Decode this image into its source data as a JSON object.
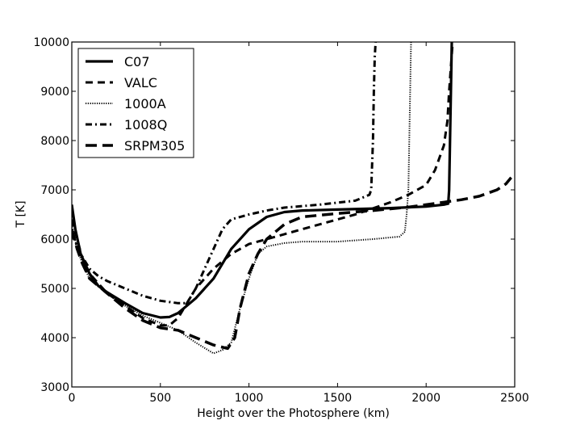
{
  "chart_data": {
    "type": "line",
    "title": "",
    "xlabel": "Height over the Photosphere (km)",
    "ylabel": "T [K]",
    "xlim": [
      0,
      2500
    ],
    "ylim": [
      3000,
      10000
    ],
    "xticks": [
      0,
      500,
      1000,
      1500,
      2000,
      2500
    ],
    "yticks": [
      3000,
      4000,
      5000,
      6000,
      7000,
      8000,
      9000,
      10000
    ],
    "legend_position": "top-left",
    "series": [
      {
        "name": "C07",
        "style": "solid",
        "points": [
          [
            0,
            6700
          ],
          [
            20,
            6200
          ],
          [
            50,
            5700
          ],
          [
            100,
            5300
          ],
          [
            150,
            5050
          ],
          [
            200,
            4920
          ],
          [
            300,
            4700
          ],
          [
            400,
            4500
          ],
          [
            500,
            4410
          ],
          [
            550,
            4420
          ],
          [
            600,
            4500
          ],
          [
            700,
            4800
          ],
          [
            800,
            5200
          ],
          [
            900,
            5800
          ],
          [
            1000,
            6200
          ],
          [
            1100,
            6450
          ],
          [
            1200,
            6550
          ],
          [
            1300,
            6580
          ],
          [
            1500,
            6600
          ],
          [
            1800,
            6630
          ],
          [
            2000,
            6660
          ],
          [
            2100,
            6700
          ],
          [
            2125,
            6720
          ],
          [
            2130,
            7000
          ],
          [
            2135,
            8000
          ],
          [
            2140,
            9000
          ],
          [
            2145,
            10000
          ]
        ]
      },
      {
        "name": "VALC",
        "style": "dashed",
        "points": [
          [
            0,
            6400
          ],
          [
            30,
            6000
          ],
          [
            60,
            5600
          ],
          [
            100,
            5300
          ],
          [
            200,
            4900
          ],
          [
            300,
            4650
          ],
          [
            400,
            4400
          ],
          [
            500,
            4250
          ],
          [
            550,
            4250
          ],
          [
            600,
            4400
          ],
          [
            650,
            4700
          ],
          [
            700,
            5000
          ],
          [
            800,
            5400
          ],
          [
            900,
            5700
          ],
          [
            1000,
            5900
          ],
          [
            1100,
            6000
          ],
          [
            1200,
            6100
          ],
          [
            1400,
            6300
          ],
          [
            1600,
            6500
          ],
          [
            1800,
            6750
          ],
          [
            1900,
            6900
          ],
          [
            2000,
            7100
          ],
          [
            2050,
            7400
          ],
          [
            2100,
            7900
          ],
          [
            2120,
            8400
          ],
          [
            2130,
            9000
          ],
          [
            2140,
            9500
          ],
          [
            2150,
            10000
          ]
        ]
      },
      {
        "name": "1000A",
        "style": "dotted",
        "points": [
          [
            0,
            6300
          ],
          [
            30,
            5800
          ],
          [
            60,
            5500
          ],
          [
            100,
            5200
          ],
          [
            200,
            4900
          ],
          [
            300,
            4650
          ],
          [
            400,
            4450
          ],
          [
            500,
            4300
          ],
          [
            600,
            4150
          ],
          [
            700,
            3900
          ],
          [
            800,
            3680
          ],
          [
            850,
            3750
          ],
          [
            900,
            3900
          ],
          [
            950,
            4600
          ],
          [
            1000,
            5200
          ],
          [
            1050,
            5700
          ],
          [
            1100,
            5850
          ],
          [
            1200,
            5920
          ],
          [
            1300,
            5950
          ],
          [
            1500,
            5950
          ],
          [
            1700,
            6000
          ],
          [
            1850,
            6050
          ],
          [
            1880,
            6150
          ],
          [
            1890,
            6500
          ],
          [
            1900,
            7000
          ],
          [
            1905,
            8000
          ],
          [
            1910,
            9000
          ],
          [
            1915,
            10000
          ]
        ]
      },
      {
        "name": "1008Q",
        "style": "dashdot",
        "points": [
          [
            0,
            6100
          ],
          [
            50,
            5700
          ],
          [
            100,
            5400
          ],
          [
            150,
            5250
          ],
          [
            200,
            5150
          ],
          [
            300,
            5000
          ],
          [
            400,
            4850
          ],
          [
            500,
            4750
          ],
          [
            600,
            4700
          ],
          [
            650,
            4700
          ],
          [
            700,
            5000
          ],
          [
            800,
            5800
          ],
          [
            850,
            6200
          ],
          [
            900,
            6400
          ],
          [
            1000,
            6500
          ],
          [
            1100,
            6580
          ],
          [
            1200,
            6640
          ],
          [
            1400,
            6700
          ],
          [
            1600,
            6780
          ],
          [
            1680,
            6900
          ],
          [
            1690,
            7000
          ],
          [
            1695,
            7500
          ],
          [
            1700,
            8000
          ],
          [
            1705,
            9000
          ],
          [
            1710,
            9700
          ],
          [
            1715,
            10000
          ]
        ]
      },
      {
        "name": "SRPM305",
        "style": "longdash",
        "points": [
          [
            0,
            6200
          ],
          [
            30,
            5800
          ],
          [
            60,
            5500
          ],
          [
            100,
            5200
          ],
          [
            200,
            4900
          ],
          [
            300,
            4600
          ],
          [
            400,
            4350
          ],
          [
            500,
            4200
          ],
          [
            600,
            4150
          ],
          [
            700,
            4000
          ],
          [
            800,
            3850
          ],
          [
            880,
            3780
          ],
          [
            920,
            4000
          ],
          [
            950,
            4600
          ],
          [
            1000,
            5300
          ],
          [
            1050,
            5700
          ],
          [
            1100,
            6000
          ],
          [
            1200,
            6300
          ],
          [
            1300,
            6450
          ],
          [
            1500,
            6520
          ],
          [
            1700,
            6580
          ],
          [
            1900,
            6650
          ],
          [
            2100,
            6750
          ],
          [
            2200,
            6800
          ],
          [
            2300,
            6870
          ],
          [
            2400,
            7000
          ],
          [
            2450,
            7120
          ],
          [
            2480,
            7250
          ]
        ]
      }
    ]
  }
}
